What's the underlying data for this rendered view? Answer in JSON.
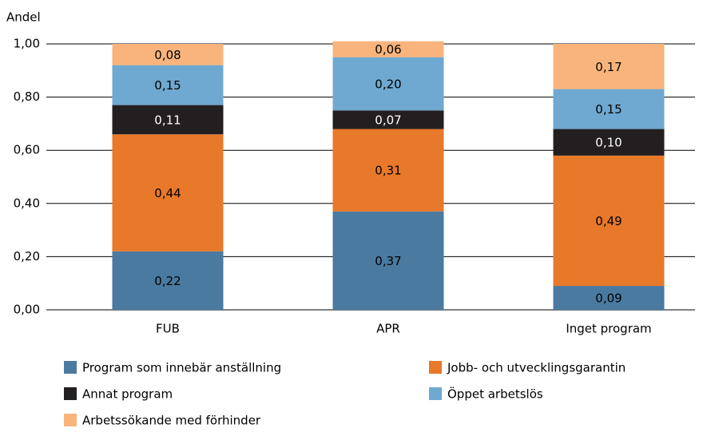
{
  "chart_data": {
    "type": "stacked_bar",
    "y_label": "Andel",
    "categories": [
      "FUB",
      "APR",
      "Inget program"
    ],
    "series": [
      {
        "name": "Program som innebär anställning",
        "color": "#4a7aa0",
        "values": [
          0.22,
          0.37,
          0.09
        ],
        "value_labels": [
          "0,22",
          "0,37",
          "0,09"
        ]
      },
      {
        "name": "Jobb- och utvecklingsgarantin",
        "color": "#e8782a",
        "values": [
          0.44,
          0.31,
          0.49
        ],
        "value_labels": [
          "0,44",
          "0,31",
          "0,49"
        ]
      },
      {
        "name": "Annat program",
        "color": "#231f20",
        "values": [
          0.11,
          0.07,
          0.1
        ],
        "value_labels": [
          "0,11",
          "0,07",
          "0,10"
        ]
      },
      {
        "name": "Öppet arbetslös",
        "color": "#6fa8d0",
        "values": [
          0.15,
          0.2,
          0.15
        ],
        "value_labels": [
          "0,15",
          "0,20",
          "0,15"
        ]
      },
      {
        "name": "Arbetssökande med förhinder",
        "color": "#f8b47c",
        "values": [
          0.08,
          0.06,
          0.17
        ],
        "value_labels": [
          "0,08",
          "0,06",
          "0,17"
        ]
      }
    ],
    "ylim": [
      0,
      1
    ],
    "yticks": [
      {
        "value": 0,
        "label": "0,00"
      },
      {
        "value": 0.2,
        "label": "0,20"
      },
      {
        "value": 0.4,
        "label": "0,40"
      },
      {
        "value": 0.6,
        "label": "0,60"
      },
      {
        "value": 0.8,
        "label": "0,80"
      },
      {
        "value": 1,
        "label": "1,00"
      }
    ],
    "grid": true
  }
}
